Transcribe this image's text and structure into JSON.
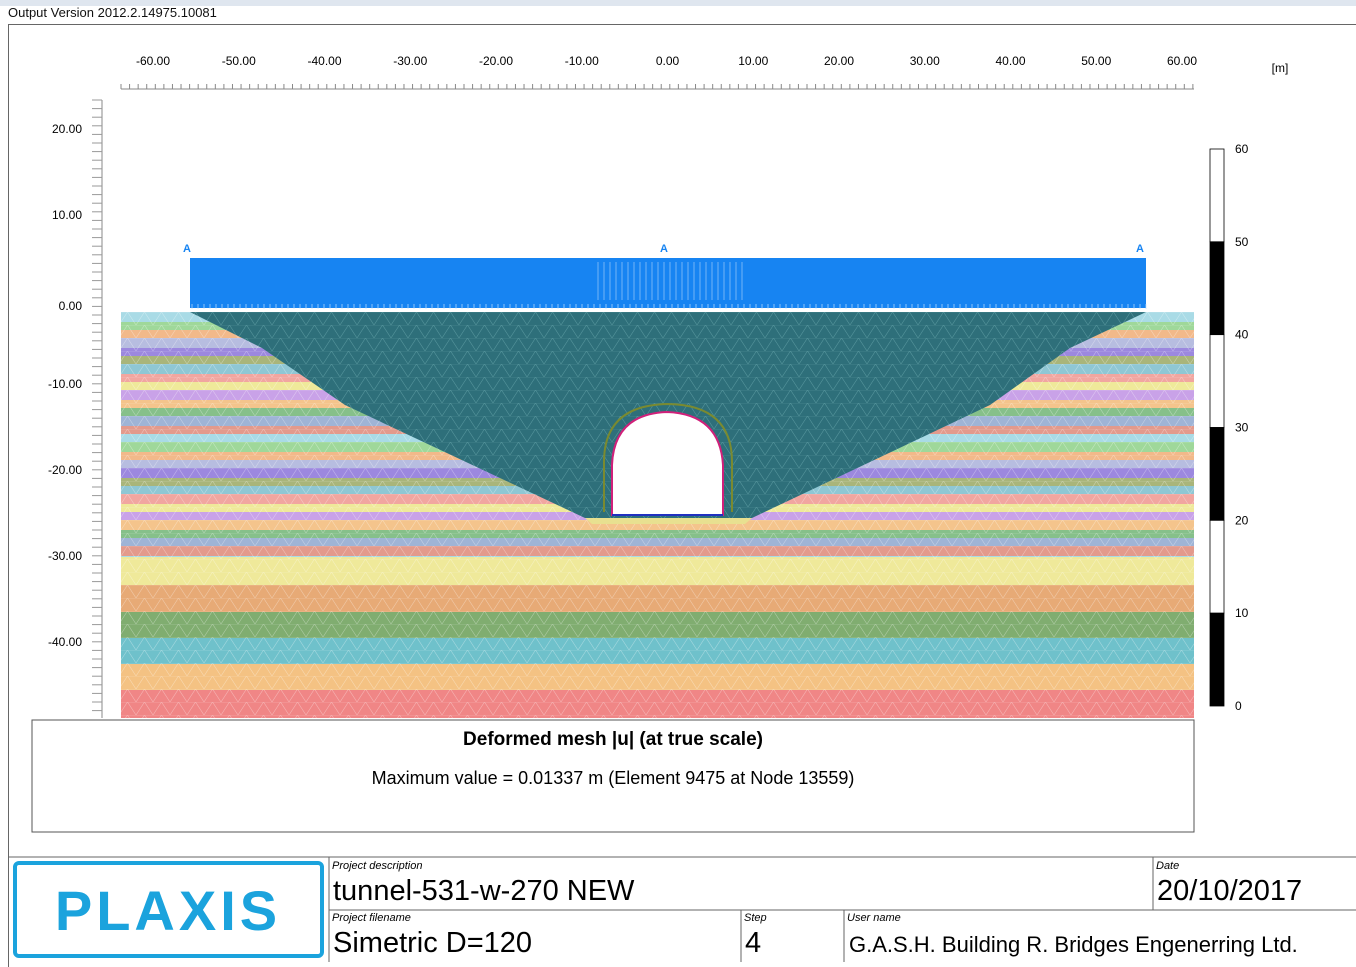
{
  "header": {
    "version": "Output Version 2012.2.14975.10081"
  },
  "plot": {
    "unit": "[m]",
    "x_ticks": [
      "-60.00",
      "-50.00",
      "-40.00",
      "-30.00",
      "-20.00",
      "-10.00",
      "0.00",
      "10.00",
      "20.00",
      "30.00",
      "40.00",
      "50.00",
      "60.00"
    ],
    "y_ticks": [
      "20.00",
      "10.00",
      "0.00",
      "-10.00",
      "-20.00",
      "-30.00",
      "-40.00"
    ],
    "load_labels": [
      "A",
      "A",
      "A"
    ],
    "legend_ticks": [
      "60",
      "50",
      "40",
      "30",
      "20",
      "10",
      "0"
    ]
  },
  "caption": {
    "title": "Deformed mesh |u| (at true scale)",
    "max_value": "Maximum value = 0.01337 m (Element 9475 at Node 13559)"
  },
  "footer": {
    "logo": "PLAXIS",
    "project_description_label": "Project description",
    "project_description": "tunnel-531-w-270 NEW",
    "date_label": "Date",
    "date": "20/10/2017",
    "project_filename_label": "Project filename",
    "project_filename": "Simetric D=120",
    "step_label": "Step",
    "step": "4",
    "user_name_label": "User name",
    "user_name": "G.A.S.H. Building R. Bridges Engenerring Ltd."
  }
}
